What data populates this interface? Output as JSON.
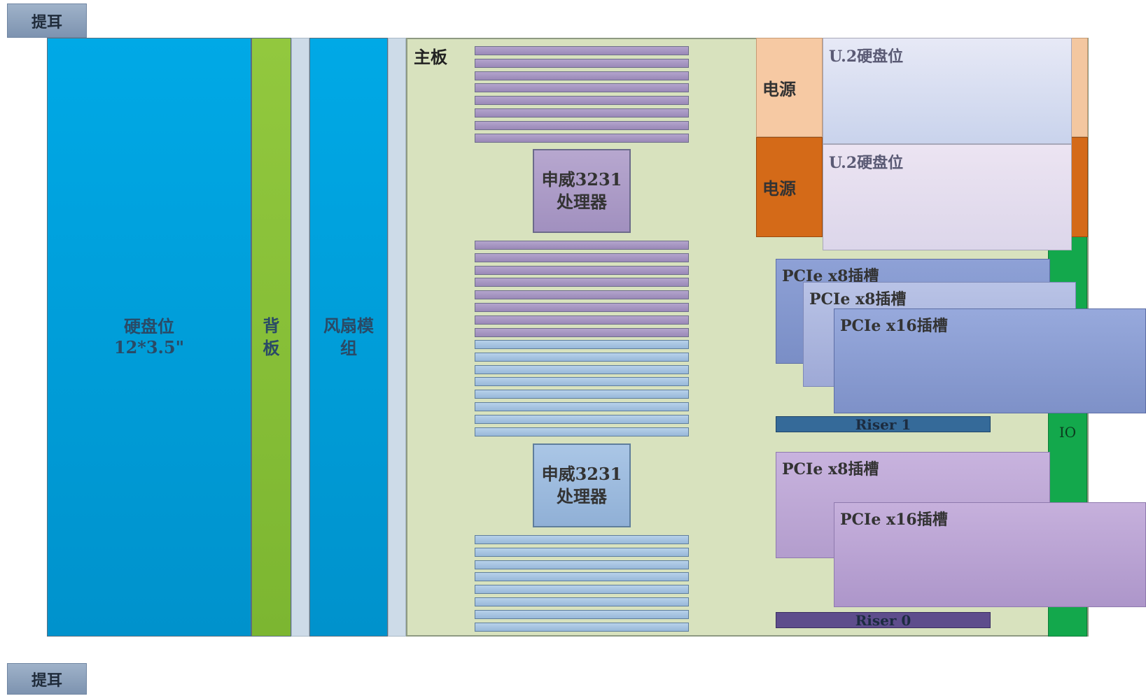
{
  "ears": {
    "top": "提耳",
    "bottom": "提耳"
  },
  "hdd": {
    "line1": "硬盘位",
    "line2": "12*3.5\""
  },
  "backplane": {
    "line1": "背",
    "line2": "板"
  },
  "fan": {
    "line1": "风扇模",
    "line2": "组"
  },
  "mainboard": {
    "title": "主板"
  },
  "cpus": [
    {
      "line1": "申威3231",
      "line2": "处理器"
    },
    {
      "line1": "申威3231",
      "line2": "处理器"
    }
  ],
  "power": [
    {
      "label": "电源"
    },
    {
      "label": "电源"
    }
  ],
  "u2_bays": [
    {
      "label": "U.2硬盘位"
    },
    {
      "label": "U.2硬盘位"
    }
  ],
  "riser1": {
    "slots": [
      {
        "label": "PCIe x8插槽"
      },
      {
        "label": "PCIe x8插槽"
      },
      {
        "label": "PCIe x16插槽"
      }
    ],
    "label": "Riser 1"
  },
  "riser0": {
    "slots": [
      {
        "label": "PCIe x8插槽"
      },
      {
        "label": "PCIe x16插槽"
      }
    ],
    "label": "Riser 0"
  },
  "io": {
    "label": "IO"
  }
}
